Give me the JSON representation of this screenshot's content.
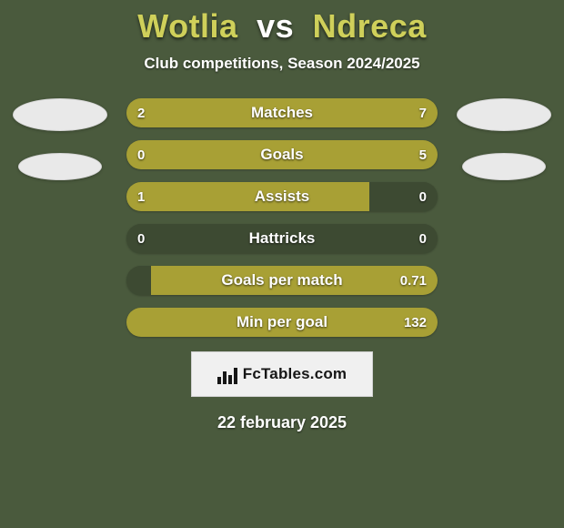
{
  "colors": {
    "page_bg": "#4a5a3d",
    "player1": "#a8a035",
    "player2": "#3d4a32",
    "title_p1": "#cfd05a",
    "title_vs": "#ffffff",
    "title_p2": "#cfd05a",
    "bar_track": "#3d4a32",
    "bar_text": "#ffffff"
  },
  "title": {
    "player1": "Wotlia",
    "vs": "vs",
    "player2": "Ndreca"
  },
  "subtitle": "Club competitions, Season 2024/2025",
  "bars": [
    {
      "label": "Matches",
      "left": "2",
      "right": "7",
      "left_pct": 22,
      "right_pct": 78
    },
    {
      "label": "Goals",
      "left": "0",
      "right": "5",
      "left_pct": 0,
      "right_pct": 100
    },
    {
      "label": "Assists",
      "left": "1",
      "right": "0",
      "left_pct": 78,
      "right_pct": 0
    },
    {
      "label": "Hattricks",
      "left": "0",
      "right": "0",
      "left_pct": 0,
      "right_pct": 0
    },
    {
      "label": "Goals per match",
      "left": "",
      "right": "0.71",
      "left_pct": 0,
      "right_pct": 92
    },
    {
      "label": "Min per goal",
      "left": "",
      "right": "132",
      "left_pct": 0,
      "right_pct": 100
    }
  ],
  "brand": "FcTables.com",
  "footer_date": "22 february 2025"
}
